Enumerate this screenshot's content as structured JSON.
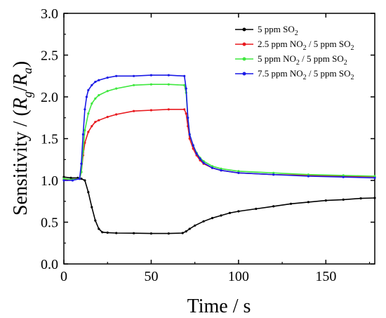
{
  "chart_data": {
    "type": "line",
    "xlabel": "Time / s",
    "ylabel_text": "Sensitivity / (",
    "ylabel_r1": "R",
    "ylabel_sub1": "g",
    "ylabel_slash": "/",
    "ylabel_r2": "R",
    "ylabel_sub2": "a",
    "ylabel_close": ")",
    "xlim": [
      0,
      178
    ],
    "ylim": [
      0.0,
      3.0
    ],
    "x_ticks": [
      0,
      50,
      100,
      150
    ],
    "y_ticks": [
      0.0,
      0.5,
      1.0,
      1.5,
      2.0,
      2.5,
      3.0
    ],
    "x_tick_labels": [
      "0",
      "50",
      "100",
      "150"
    ],
    "y_tick_labels": [
      "0.0",
      "0.5",
      "1.0",
      "1.5",
      "2.0",
      "2.5",
      "3.0"
    ],
    "legend_position": "top-right",
    "series": [
      {
        "name": "5 ppm SO2",
        "legend": {
          "pre": "5 ppm SO",
          "sub": "2",
          "mid": "",
          "sub2": ""
        },
        "color": "#000000",
        "x": [
          0,
          4,
          8,
          10,
          12,
          14,
          16,
          18,
          20,
          22,
          25,
          30,
          40,
          50,
          60,
          68,
          70,
          72,
          75,
          80,
          85,
          90,
          95,
          100,
          110,
          120,
          130,
          140,
          150,
          160,
          170,
          178
        ],
        "y": [
          1.04,
          1.03,
          1.03,
          1.02,
          1.0,
          0.86,
          0.68,
          0.52,
          0.42,
          0.38,
          0.375,
          0.37,
          0.368,
          0.365,
          0.365,
          0.37,
          0.39,
          0.42,
          0.46,
          0.51,
          0.55,
          0.58,
          0.61,
          0.63,
          0.66,
          0.69,
          0.72,
          0.74,
          0.76,
          0.77,
          0.785,
          0.79
        ]
      },
      {
        "name": "2.5 ppm NO2 / 5 ppm SO2",
        "legend": {
          "pre": "2.5 ppm NO",
          "sub": "2",
          "mid": " / 5 ppm SO",
          "sub2": "2"
        },
        "color": "#e8191e",
        "x": [
          0,
          5,
          9,
          10,
          11,
          12,
          14,
          16,
          18,
          20,
          25,
          30,
          40,
          50,
          60,
          69,
          70,
          71,
          72,
          74,
          76,
          78,
          80,
          85,
          90,
          100,
          120,
          140,
          160,
          178
        ],
        "y": [
          1.01,
          1.01,
          1.02,
          1.1,
          1.3,
          1.45,
          1.58,
          1.65,
          1.7,
          1.72,
          1.76,
          1.79,
          1.83,
          1.84,
          1.85,
          1.85,
          1.8,
          1.65,
          1.5,
          1.38,
          1.3,
          1.24,
          1.2,
          1.15,
          1.12,
          1.09,
          1.07,
          1.06,
          1.05,
          1.045
        ]
      },
      {
        "name": "5 ppm NO2 / 5 ppm SO2",
        "legend": {
          "pre": "5 ppm NO",
          "sub": "2",
          "mid": " / 5 ppm SO",
          "sub2": "2"
        },
        "color": "#3ee83e",
        "x": [
          0,
          5,
          9,
          10,
          11,
          12,
          14,
          16,
          18,
          20,
          25,
          30,
          40,
          50,
          60,
          69,
          70,
          71,
          72,
          74,
          76,
          78,
          80,
          85,
          90,
          100,
          120,
          140,
          160,
          178
        ],
        "y": [
          1.02,
          1.01,
          1.02,
          1.1,
          1.35,
          1.6,
          1.8,
          1.92,
          1.98,
          2.02,
          2.07,
          2.1,
          2.14,
          2.15,
          2.15,
          2.14,
          2.05,
          1.75,
          1.55,
          1.42,
          1.33,
          1.27,
          1.23,
          1.17,
          1.14,
          1.11,
          1.09,
          1.07,
          1.06,
          1.05
        ]
      },
      {
        "name": "7.5 ppm NO2 / 5 ppm SO2",
        "legend": {
          "pre": "7.5 ppm NO",
          "sub": "2",
          "mid": " / 5 ppm SO",
          "sub2": "2"
        },
        "color": "#1a1ae6",
        "x": [
          0,
          5,
          9,
          10,
          11,
          12,
          13,
          14,
          16,
          18,
          20,
          25,
          30,
          40,
          50,
          60,
          69,
          70,
          71,
          72,
          74,
          76,
          78,
          80,
          85,
          90,
          100,
          120,
          140,
          160,
          178
        ],
        "y": [
          1.0,
          1.0,
          1.02,
          1.2,
          1.55,
          1.85,
          2.0,
          2.08,
          2.14,
          2.18,
          2.2,
          2.23,
          2.25,
          2.25,
          2.26,
          2.26,
          2.25,
          2.1,
          1.75,
          1.55,
          1.42,
          1.32,
          1.26,
          1.21,
          1.15,
          1.12,
          1.09,
          1.07,
          1.05,
          1.04,
          1.03
        ]
      }
    ]
  }
}
